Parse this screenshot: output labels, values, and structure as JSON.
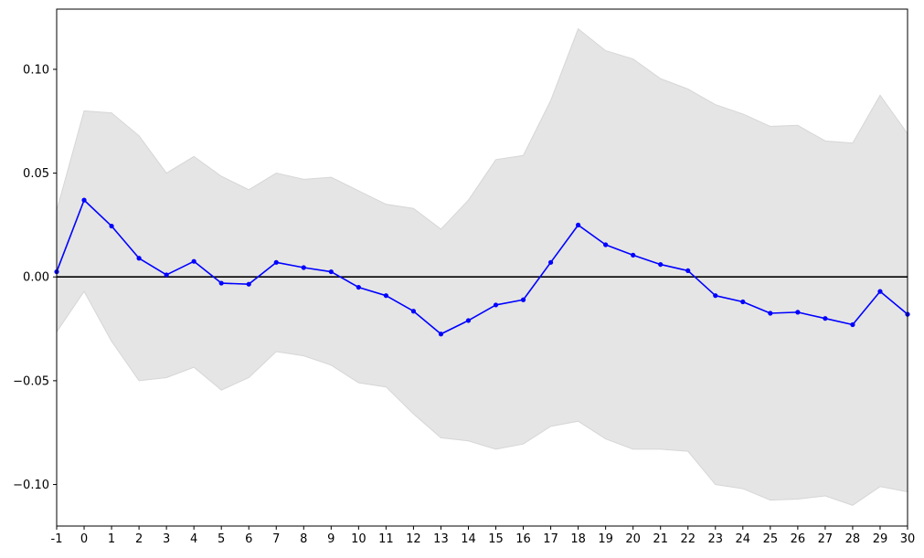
{
  "chart_data": {
    "type": "line",
    "title": "",
    "xlabel": "",
    "ylabel": "",
    "x": [
      -1,
      0,
      1,
      2,
      3,
      4,
      5,
      6,
      7,
      8,
      9,
      10,
      11,
      12,
      13,
      14,
      15,
      16,
      17,
      18,
      19,
      20,
      21,
      22,
      23,
      24,
      25,
      26,
      27,
      28,
      29,
      30
    ],
    "xticks": [
      "-1",
      "0",
      "1",
      "2",
      "3",
      "4",
      "5",
      "6",
      "7",
      "8",
      "9",
      "10",
      "11",
      "12",
      "13",
      "14",
      "15",
      "16",
      "17",
      "18",
      "19",
      "20",
      "21",
      "22",
      "23",
      "24",
      "25",
      "26",
      "27",
      "28",
      "29",
      "30"
    ],
    "yticks": [
      {
        "value": 0.1,
        "label": "0.10"
      },
      {
        "value": 0.05,
        "label": "0.05"
      },
      {
        "value": 0.0,
        "label": "0.00"
      },
      {
        "value": -0.05,
        "label": "−0.05"
      },
      {
        "value": -0.1,
        "label": "−0.10"
      }
    ],
    "xlim": [
      -1,
      30
    ],
    "ylim": [
      -0.12,
      0.129
    ],
    "grid": false,
    "legend": "none",
    "series": [
      {
        "color": "#0000ff",
        "marker": "circle",
        "values": [
          0.0025,
          0.037,
          0.0245,
          0.009,
          0.001,
          0.0075,
          -0.003,
          -0.0035,
          0.007,
          0.0045,
          0.0025,
          -0.005,
          -0.009,
          -0.0165,
          -0.0275,
          -0.021,
          -0.0135,
          -0.011,
          0.007,
          0.025,
          0.0155,
          0.0105,
          0.006,
          0.003,
          -0.009,
          -0.012,
          -0.0175,
          -0.017,
          -0.02,
          -0.023,
          -0.007,
          -0.018
        ]
      }
    ],
    "band": {
      "color": "#e5e5e5",
      "edge_color": "#d6d6d6",
      "upper": [
        0.032,
        0.08,
        0.079,
        0.068,
        0.05,
        0.058,
        0.0485,
        0.042,
        0.05,
        0.047,
        0.048,
        0.0415,
        0.035,
        0.033,
        0.023,
        0.037,
        0.0565,
        0.0585,
        0.085,
        0.1195,
        0.109,
        0.105,
        0.0955,
        0.0905,
        0.083,
        0.0785,
        0.0725,
        0.073,
        0.0655,
        0.0645,
        0.0875,
        0.069
      ],
      "lower": [
        -0.0265,
        -0.007,
        -0.031,
        -0.05,
        -0.0485,
        -0.0435,
        -0.0545,
        -0.0485,
        -0.036,
        -0.038,
        -0.0425,
        -0.051,
        -0.053,
        -0.066,
        -0.0775,
        -0.079,
        -0.083,
        -0.0805,
        -0.072,
        -0.0695,
        -0.078,
        -0.083,
        -0.083,
        -0.084,
        -0.1,
        -0.102,
        -0.1075,
        -0.107,
        -0.1055,
        -0.11,
        -0.101,
        -0.1035
      ]
    },
    "reference_line": {
      "y": 0.0,
      "color": "#000000"
    }
  }
}
